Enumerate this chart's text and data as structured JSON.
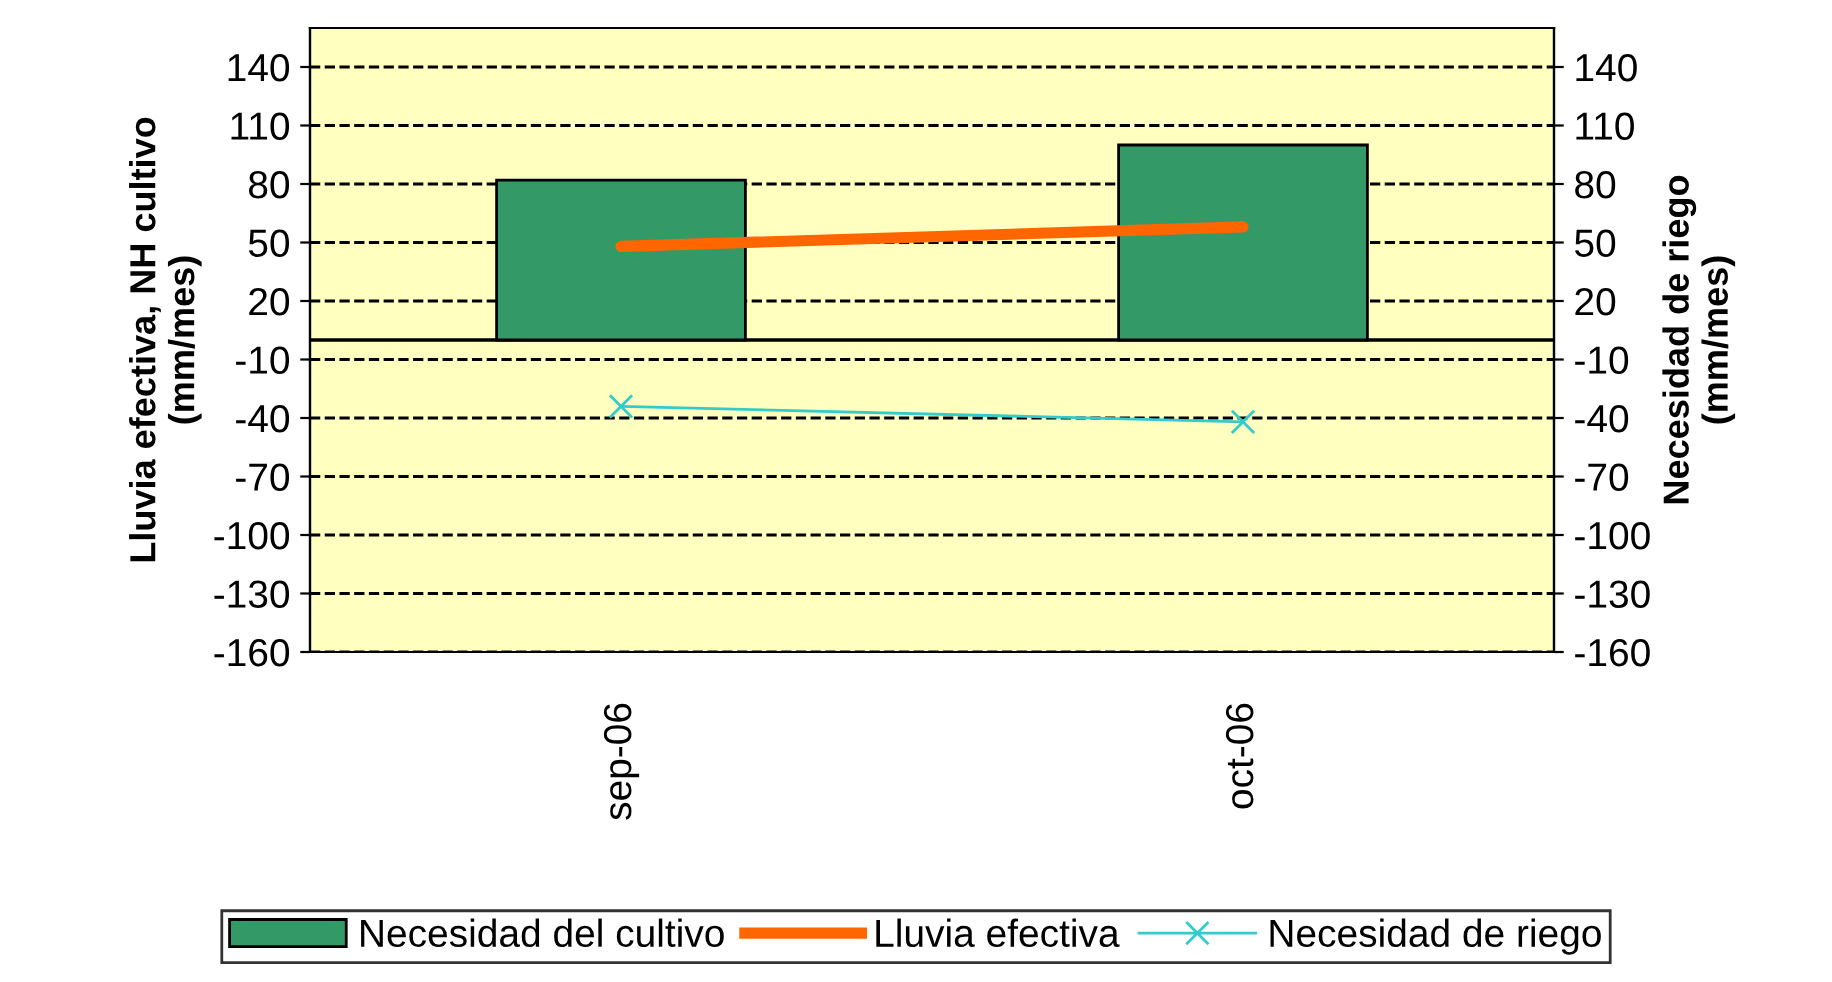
{
  "chart_data": {
    "type": "bar",
    "categories": [
      "sep-06",
      "oct-06"
    ],
    "series": [
      {
        "name": "Necesidad del cultivo",
        "color": "#339966",
        "values": [
          82,
          100
        ]
      },
      {
        "name": "Lluvia efectiva",
        "type": "line",
        "color": "#ff6600",
        "values": [
          48,
          58
        ]
      },
      {
        "name": "Necesidad de riego",
        "type": "line",
        "marker": "cross",
        "color": "#33cccc",
        "values": [
          -34,
          -42
        ]
      }
    ],
    "ylabel": "Lluvia efectiva, NH cultivo\n(mm/mes)",
    "y2label": "Necesidad de riego\n(mm/mes)",
    "ylim": [
      -160,
      160
    ],
    "yticks": [
      -160,
      -130,
      -100,
      -70,
      -40,
      -10,
      20,
      50,
      80,
      110,
      140
    ],
    "y2lim": [
      -160,
      160
    ],
    "y2ticks": [
      -160,
      -130,
      -100,
      -70,
      -40,
      -10,
      20,
      50,
      80,
      110,
      140
    ],
    "ref_lines": [
      {
        "axis": "y",
        "value": 0,
        "color": "#000000",
        "line_style": "solid"
      }
    ],
    "grid": "y",
    "legend": "bottom"
  }
}
